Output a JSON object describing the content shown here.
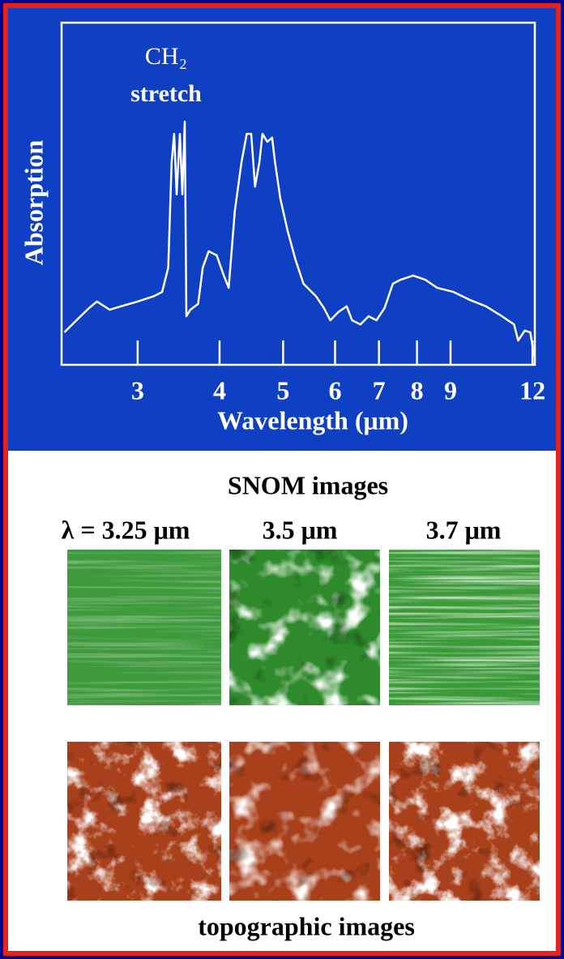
{
  "chart_data": {
    "type": "line",
    "annotation": [
      "CH₂",
      "stretch"
    ],
    "xlabel": "Wavelength (μm)",
    "ylabel": "Absorption",
    "xscale": "log",
    "xlim": [
      2.31,
      12.1
    ],
    "ylim": [
      0,
      1
    ],
    "xticks": [
      3,
      4,
      5,
      6,
      7,
      8,
      9,
      12
    ],
    "color": "#ffffff",
    "x": [
      2.32,
      2.42,
      2.53,
      2.6,
      2.72,
      2.83,
      3.0,
      3.18,
      3.27,
      3.34,
      3.38,
      3.41,
      3.44,
      3.46,
      3.48,
      3.51,
      3.54,
      3.56,
      3.61,
      3.71,
      3.77,
      3.85,
      3.96,
      4.06,
      4.13,
      4.22,
      4.32,
      4.4,
      4.47,
      4.53,
      4.6,
      4.65,
      4.73,
      4.81,
      4.86,
      4.95,
      5.08,
      5.22,
      5.37,
      5.61,
      5.77,
      5.9,
      6.07,
      6.25,
      6.37,
      6.56,
      6.75,
      6.94,
      7.14,
      7.35,
      7.56,
      7.89,
      8.23,
      8.59,
      9.09,
      9.62,
      10.19,
      10.78,
      11.25,
      11.41,
      11.68,
      11.91,
      12.08
    ],
    "values": [
      0.095,
      0.13,
      0.166,
      0.185,
      0.161,
      0.171,
      0.185,
      0.201,
      0.213,
      0.284,
      0.592,
      0.675,
      0.498,
      0.592,
      0.675,
      0.498,
      0.711,
      0.142,
      0.161,
      0.178,
      0.284,
      0.332,
      0.32,
      0.261,
      0.225,
      0.45,
      0.592,
      0.675,
      0.675,
      0.521,
      0.592,
      0.675,
      0.652,
      0.664,
      0.592,
      0.486,
      0.391,
      0.308,
      0.237,
      0.201,
      0.166,
      0.13,
      0.154,
      0.171,
      0.13,
      0.118,
      0.142,
      0.13,
      0.166,
      0.237,
      0.249,
      0.261,
      0.249,
      0.225,
      0.213,
      0.19,
      0.171,
      0.142,
      0.118,
      0.071,
      0.1,
      0.095,
      0.024
    ]
  },
  "images": {
    "title": "SNOM images",
    "labels": [
      "λ = 3.25 μm",
      "3.5 μm",
      "3.7 μm"
    ],
    "caption": "topographic images"
  }
}
